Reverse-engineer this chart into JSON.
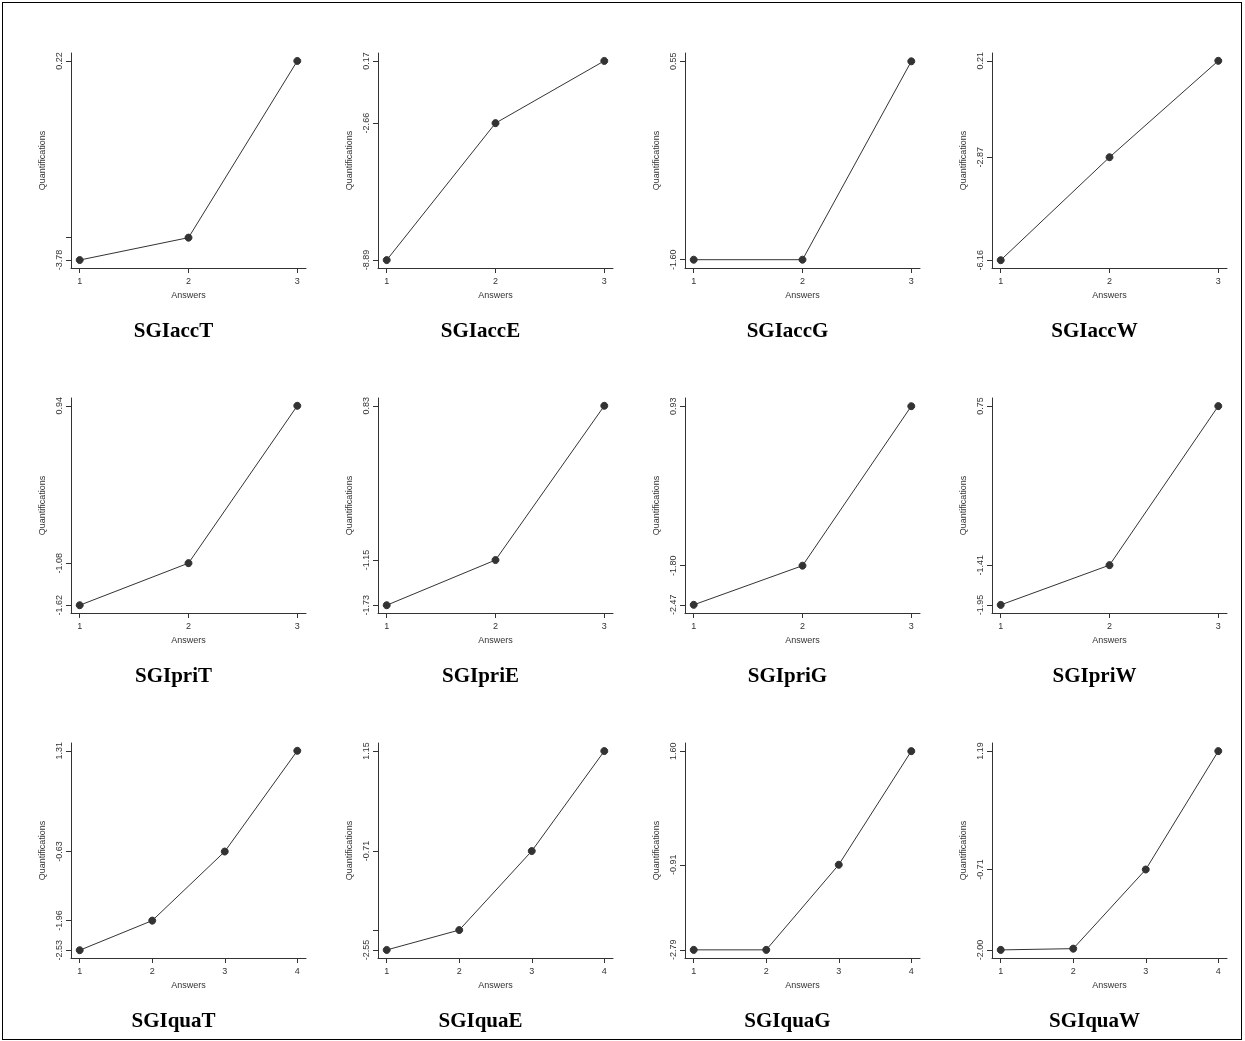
{
  "chart_data": [
    {
      "type": "line",
      "title": "SGIaccT",
      "xlabel": "Answers",
      "ylabel": "Quantifications",
      "x": [
        1,
        2,
        3
      ],
      "values": [
        -3.78,
        -3.33,
        0.22
      ],
      "color": "#333333",
      "marker": "circle",
      "xlim": [
        0.92,
        3.08
      ],
      "xticks": [
        1,
        2,
        3
      ],
      "ylim": [
        -3.94,
        0.38
      ],
      "yticks": [
        -3.78,
        {
          "value": -3.33,
          "label": null
        },
        0.22
      ]
    },
    {
      "type": "line",
      "title": "SGIaccE",
      "xlabel": "Answers",
      "ylabel": "Quantifications",
      "x": [
        1,
        2,
        3
      ],
      "values": [
        -8.89,
        -2.66,
        0.17
      ],
      "color": "#333333",
      "marker": "circle",
      "xlim": [
        0.92,
        3.08
      ],
      "xticks": [
        1,
        2,
        3
      ],
      "ylim": [
        -9.25,
        0.53
      ],
      "yticks": [
        -8.89,
        -2.66,
        0.17
      ]
    },
    {
      "type": "line",
      "title": "SGIaccG",
      "xlabel": "Answers",
      "ylabel": "Quantifications",
      "x": [
        1,
        2,
        3
      ],
      "values": [
        -1.6,
        -1.6,
        0.55
      ],
      "color": "#333333",
      "marker": "circle",
      "xlim": [
        0.92,
        3.08
      ],
      "xticks": [
        1,
        2,
        3
      ],
      "ylim": [
        -1.69,
        0.64
      ],
      "yticks": [
        {
          "value": -1.6,
          "label": "-1.60"
        },
        0.55
      ]
    },
    {
      "type": "line",
      "title": "SGIaccW",
      "xlabel": "Answers",
      "ylabel": "Quantifications",
      "x": [
        1,
        2,
        3
      ],
      "values": [
        -6.16,
        -2.87,
        0.21
      ],
      "color": "#333333",
      "marker": "circle",
      "xlim": [
        0.92,
        3.08
      ],
      "xticks": [
        1,
        2,
        3
      ],
      "ylim": [
        -6.41,
        0.46
      ],
      "yticks": [
        -6.16,
        -2.87,
        0.21
      ]
    },
    {
      "type": "line",
      "title": "SGIpriT",
      "xlabel": "Answers",
      "ylabel": "Quantifications",
      "x": [
        1,
        2,
        3
      ],
      "values": [
        -1.62,
        -1.08,
        0.94
      ],
      "color": "#333333",
      "marker": "circle",
      "xlim": [
        0.92,
        3.08
      ],
      "xticks": [
        1,
        2,
        3
      ],
      "ylim": [
        -1.72,
        1.04
      ],
      "yticks": [
        -1.62,
        -1.08,
        0.94
      ]
    },
    {
      "type": "line",
      "title": "SGIpriE",
      "xlabel": "Answers",
      "ylabel": "Quantifications",
      "x": [
        1,
        2,
        3
      ],
      "values": [
        -1.73,
        -1.15,
        0.83
      ],
      "color": "#333333",
      "marker": "circle",
      "xlim": [
        0.92,
        3.08
      ],
      "xticks": [
        1,
        2,
        3
      ],
      "ylim": [
        -1.83,
        0.93
      ],
      "yticks": [
        -1.73,
        -1.15,
        0.83
      ]
    },
    {
      "type": "line",
      "title": "SGIpriG",
      "xlabel": "Answers",
      "ylabel": "Quantifications",
      "x": [
        1,
        2,
        3
      ],
      "values": [
        -2.47,
        -1.8,
        0.93
      ],
      "color": "#333333",
      "marker": "circle",
      "xlim": [
        0.92,
        3.08
      ],
      "xticks": [
        1,
        2,
        3
      ],
      "ylim": [
        -2.61,
        1.07
      ],
      "yticks": [
        -2.47,
        {
          "value": -1.8,
          "label": "-1.80"
        },
        0.93
      ]
    },
    {
      "type": "line",
      "title": "SGIpriW",
      "xlabel": "Answers",
      "ylabel": "Quantifications",
      "x": [
        1,
        2,
        3
      ],
      "values": [
        -1.95,
        -1.41,
        0.75
      ],
      "color": "#333333",
      "marker": "circle",
      "xlim": [
        0.92,
        3.08
      ],
      "xticks": [
        1,
        2,
        3
      ],
      "ylim": [
        -2.06,
        0.86
      ],
      "yticks": [
        -1.95,
        -1.41,
        0.75
      ]
    },
    {
      "type": "line",
      "title": "SGIquaT",
      "xlabel": "Answers",
      "ylabel": "Quantifications",
      "x": [
        1,
        2,
        3,
        4
      ],
      "values": [
        -2.53,
        -1.96,
        -0.63,
        1.31
      ],
      "color": "#333333",
      "marker": "circle",
      "xlim": [
        0.88,
        4.12
      ],
      "xticks": [
        1,
        2,
        3,
        4
      ],
      "ylim": [
        -2.68,
        1.46
      ],
      "yticks": [
        -2.53,
        -1.96,
        -0.63,
        1.31
      ]
    },
    {
      "type": "line",
      "title": "SGIquaE",
      "xlabel": "Answers",
      "ylabel": "Quantifications",
      "x": [
        1,
        2,
        3,
        4
      ],
      "values": [
        -2.55,
        -2.18,
        -0.71,
        1.15
      ],
      "color": "#333333",
      "marker": "circle",
      "xlim": [
        0.88,
        4.12
      ],
      "xticks": [
        1,
        2,
        3,
        4
      ],
      "ylim": [
        -2.7,
        1.3
      ],
      "yticks": [
        -2.55,
        {
          "value": -2.18,
          "label": null
        },
        -0.71,
        1.15
      ]
    },
    {
      "type": "line",
      "title": "SGIquaG",
      "xlabel": "Answers",
      "ylabel": "Quantifications",
      "x": [
        1,
        2,
        3,
        4
      ],
      "values": [
        -2.79,
        -2.79,
        -0.91,
        1.6
      ],
      "color": "#333333",
      "marker": "circle",
      "xlim": [
        0.88,
        4.12
      ],
      "xticks": [
        1,
        2,
        3,
        4
      ],
      "ylim": [
        -2.97,
        1.78
      ],
      "yticks": [
        -2.79,
        -0.91,
        {
          "value": 1.6,
          "label": "1.60"
        }
      ]
    },
    {
      "type": "line",
      "title": "SGIquaW",
      "xlabel": "Answers",
      "ylabel": "Quantifications",
      "x": [
        1,
        2,
        3,
        4
      ],
      "values": [
        -2.0,
        -1.98,
        -0.71,
        1.19
      ],
      "color": "#333333",
      "marker": "circle",
      "xlim": [
        0.88,
        4.12
      ],
      "xticks": [
        1,
        2,
        3,
        4
      ],
      "ylim": [
        -2.13,
        1.32
      ],
      "yticks": [
        {
          "value": -2.0,
          "label": "-2.00"
        },
        -0.71,
        1.19
      ]
    }
  ]
}
